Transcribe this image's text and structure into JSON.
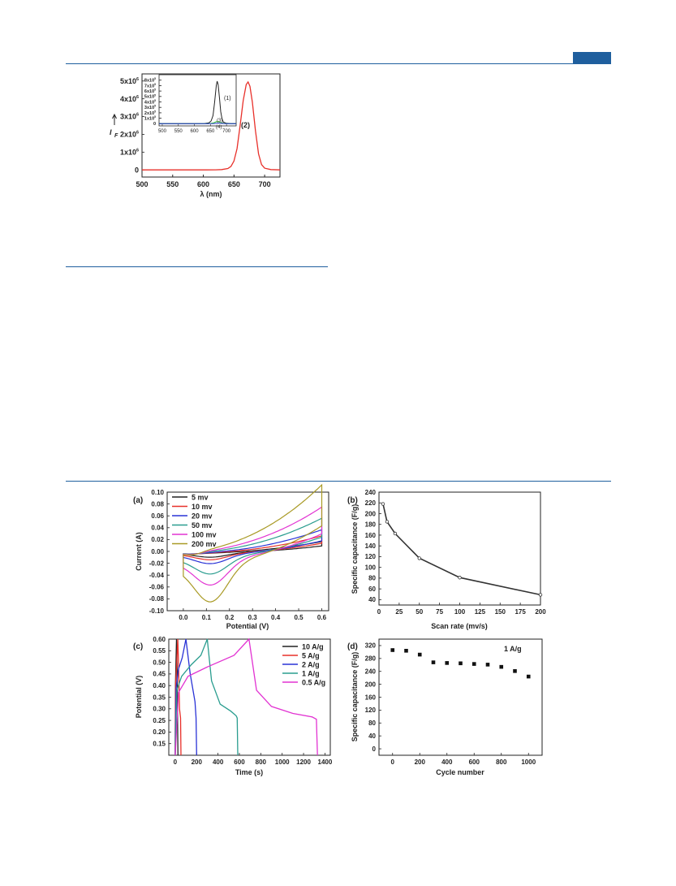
{
  "page": {
    "accent": "#1f5f9e"
  },
  "chart_data": [
    {
      "id": "fluorescence",
      "type": "line",
      "xlabel": "λ (nm)",
      "ylabel": "I_F",
      "xlim": [
        500,
        725
      ],
      "ylim": [
        -400000,
        5400000
      ],
      "xticks": [
        "500",
        "550",
        "600",
        "650",
        "700"
      ],
      "yticks": [
        {
          "v": 0,
          "m": "0",
          "e": ""
        },
        {
          "v": 1000000,
          "m": "1x10",
          "e": "6"
        },
        {
          "v": 2000000,
          "m": "2x10",
          "e": "6"
        },
        {
          "v": 3000000,
          "m": "3x10",
          "e": "6"
        },
        {
          "v": 4000000,
          "m": "4x10",
          "e": "6"
        },
        {
          "v": 5000000,
          "m": "5x10",
          "e": "6"
        }
      ],
      "series": [
        {
          "name": "(2)",
          "color": "#e8302a",
          "x": [
            500,
            600,
            620,
            630,
            640,
            645,
            650,
            655,
            660,
            665,
            670,
            673,
            676,
            680,
            685,
            690,
            695,
            700,
            710,
            725
          ],
          "y": [
            0,
            0,
            5000,
            20000,
            80000,
            200000,
            500000,
            1200000,
            2500000,
            3900000,
            4800000,
            4950000,
            4700000,
            3800000,
            2200000,
            900000,
            300000,
            100000,
            20000,
            0
          ]
        }
      ],
      "inset": {
        "xlim": [
          490,
          730
        ],
        "ylim": [
          -40000,
          900000
        ],
        "xticks": [
          "500",
          "550",
          "600",
          "650",
          "700"
        ],
        "yticks": [
          {
            "v": 0,
            "m": "0",
            "e": ""
          },
          {
            "v": 100000,
            "m": "1x10",
            "e": "5"
          },
          {
            "v": 200000,
            "m": "2x10",
            "e": "5"
          },
          {
            "v": 300000,
            "m": "3x10",
            "e": "5"
          },
          {
            "v": 400000,
            "m": "4x10",
            "e": "5"
          },
          {
            "v": 500000,
            "m": "5x10",
            "e": "5"
          },
          {
            "v": 600000,
            "m": "6x10",
            "e": "5"
          },
          {
            "v": 700000,
            "m": "7x10",
            "e": "5"
          },
          {
            "v": 800000,
            "m": "8x10",
            "e": "5"
          }
        ],
        "series": [
          {
            "name": "(1)",
            "color": "#222222",
            "x": [
              490,
              600,
              630,
              645,
              652,
              658,
              663,
              668,
              671,
              674,
              678,
              682,
              686,
              690,
              700,
              715,
              730
            ],
            "y": [
              0,
              0,
              3000,
              15000,
              50000,
              150000,
              400000,
              700000,
              780000,
              720000,
              480000,
              220000,
              90000,
              30000,
              8000,
              1000,
              0
            ]
          },
          {
            "name": "(3)",
            "color": "#34c634",
            "x": [
              490,
              630,
              650,
              660,
              667,
              672,
              677,
              684,
              692,
              705,
              730
            ],
            "y": [
              0,
              0,
              5000,
              15000,
              35000,
              42000,
              35000,
              15000,
              5000,
              1000,
              0
            ]
          },
          {
            "name": "(4)",
            "color": "#2233cc",
            "x": [
              490,
              640,
              660,
              670,
              675,
              680,
              690,
              705,
              730
            ],
            "y": [
              0,
              0,
              3000,
              9000,
              12000,
              9000,
              3000,
              500,
              0
            ]
          }
        ]
      }
    },
    {
      "id": "cv",
      "type": "line",
      "panel": "(a)",
      "xlabel": "Potential (V)",
      "ylabel": "Current (A)",
      "xlim": [
        -0.07,
        0.63
      ],
      "ylim": [
        -0.1,
        0.1
      ],
      "xticks": [
        "0.0",
        "0.1",
        "0.2",
        "0.3",
        "0.4",
        "0.5",
        "0.6"
      ],
      "yticks": [
        "-0.10",
        "-0.08",
        "-0.06",
        "-0.04",
        "-0.02",
        "0.00",
        "0.02",
        "0.04",
        "0.06",
        "0.08",
        "0.10"
      ],
      "series": [
        {
          "name": "5 mv",
          "color": "#222222",
          "amp": 0.017,
          "peak": 0.009
        },
        {
          "name": "10 mv",
          "color": "#e8302a",
          "amp": 0.025,
          "peak": 0.013
        },
        {
          "name": "20 mv",
          "color": "#2a33d6",
          "amp": 0.033,
          "peak": 0.019
        },
        {
          "name": "50 mv",
          "color": "#2a9d8f",
          "amp": 0.046,
          "peak": 0.035
        },
        {
          "name": "100 mv",
          "color": "#e233d2",
          "amp": 0.058,
          "peak": 0.052
        },
        {
          "name": "200 mv",
          "color": "#a99a25",
          "amp": 0.085,
          "peak": 0.078
        }
      ]
    },
    {
      "id": "rate",
      "type": "line",
      "panel": "(b)",
      "xlabel": "Scan rate (mv/s)",
      "ylabel": "Specific capacitance (F/g)",
      "xlim": [
        0,
        200
      ],
      "ylim": [
        30,
        240
      ],
      "xticks": [
        "0",
        "25",
        "50",
        "75",
        "100",
        "125",
        "150",
        "175",
        "200"
      ],
      "yticks": [
        "40",
        "60",
        "80",
        "100",
        "120",
        "140",
        "160",
        "180",
        "200",
        "220",
        "240"
      ],
      "x": [
        5,
        10,
        20,
        50,
        100,
        200
      ],
      "y": [
        218,
        185,
        163,
        117,
        81,
        49
      ],
      "color": "#333333"
    },
    {
      "id": "gcd",
      "type": "line",
      "panel": "(c)",
      "xlabel": "Time (s)",
      "ylabel": "Potential (V)",
      "xlim": [
        -60,
        1450
      ],
      "ylim": [
        0.1,
        0.6
      ],
      "xticks": [
        "0",
        "200",
        "400",
        "600",
        "800",
        "1000",
        "1200",
        "1400"
      ],
      "yticks": [
        "0.15",
        "0.20",
        "0.25",
        "0.30",
        "0.35",
        "0.40",
        "0.45",
        "0.50",
        "0.55",
        "0.60"
      ],
      "series": [
        {
          "name": "10 A/g",
          "color": "#222222",
          "x": [
            0,
            2,
            6,
            12,
            18,
            22,
            26
          ],
          "y": [
            0.1,
            0.4,
            0.48,
            0.6,
            0.46,
            0.25,
            0.1
          ]
        },
        {
          "name": "5 A/g",
          "color": "#e8302a",
          "x": [
            0,
            4,
            12,
            24,
            32,
            40,
            50,
            54
          ],
          "y": [
            0.1,
            0.4,
            0.48,
            0.6,
            0.48,
            0.3,
            0.26,
            0.1
          ]
        },
        {
          "name": "2 A/g",
          "color": "#2a33d6",
          "x": [
            0,
            8,
            30,
            65,
            100,
            140,
            185,
            195,
            200
          ],
          "y": [
            0.1,
            0.39,
            0.47,
            0.52,
            0.6,
            0.45,
            0.33,
            0.26,
            0.1
          ]
        },
        {
          "name": "1 A/g",
          "color": "#2a9d8f",
          "x": [
            0,
            15,
            60,
            150,
            240,
            300,
            340,
            420,
            520,
            570,
            580,
            585
          ],
          "y": [
            0.1,
            0.38,
            0.44,
            0.49,
            0.53,
            0.6,
            0.42,
            0.32,
            0.29,
            0.27,
            0.26,
            0.1
          ]
        },
        {
          "name": "0.5 A/g",
          "color": "#e233d2",
          "x": [
            0,
            30,
            120,
            300,
            550,
            690,
            760,
            900,
            1100,
            1280,
            1320,
            1325,
            1330
          ],
          "y": [
            0.1,
            0.37,
            0.44,
            0.48,
            0.53,
            0.6,
            0.38,
            0.31,
            0.28,
            0.265,
            0.255,
            0.18,
            0.1
          ]
        }
      ]
    },
    {
      "id": "cycle",
      "type": "scatter",
      "panel": "(d)",
      "annotation": "1 A/g",
      "xlabel": "Cycle number",
      "ylabel": "Specific capacitance (F/g)",
      "xlim": [
        -100,
        1100
      ],
      "ylim": [
        -20,
        340
      ],
      "xticks": [
        "0",
        "200",
        "400",
        "600",
        "800",
        "1000"
      ],
      "yticks": [
        "0",
        "40",
        "80",
        "120",
        "160",
        "200",
        "240",
        "280",
        "320"
      ],
      "x": [
        0,
        100,
        200,
        300,
        400,
        500,
        600,
        700,
        800,
        900,
        1000
      ],
      "y": [
        306,
        304,
        292,
        268,
        266,
        265,
        263,
        261,
        254,
        241,
        224
      ],
      "color": "#111111"
    }
  ]
}
